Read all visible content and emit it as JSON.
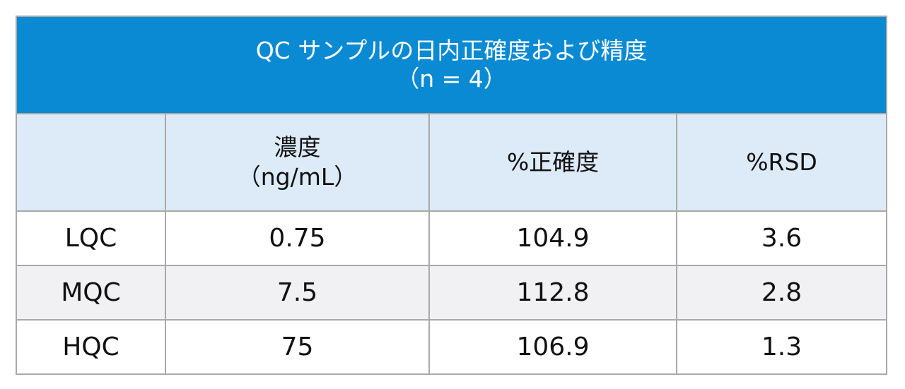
{
  "title": {
    "line1": "QC サンプルの日内正確度および精度",
    "line2": "（n = 4）"
  },
  "headers": {
    "blank": "",
    "conc_line1": "濃度",
    "conc_line2": "（ng/mL）",
    "accuracy": "%正確度",
    "rsd": "%RSD"
  },
  "rows": [
    {
      "label": "LQC",
      "conc": "0.75",
      "accuracy": "104.9",
      "rsd": "3.6"
    },
    {
      "label": "MQC",
      "conc": "7.5",
      "accuracy": "112.8",
      "rsd": "2.8"
    },
    {
      "label": "HQC",
      "conc": "75",
      "accuracy": "106.9",
      "rsd": "1.3"
    }
  ],
  "colors": {
    "title_bg": "#0a8ad3",
    "header_bg": "#ddeaf7",
    "alt_row_bg": "#f1f1f4",
    "border": "#a9a9a9"
  }
}
